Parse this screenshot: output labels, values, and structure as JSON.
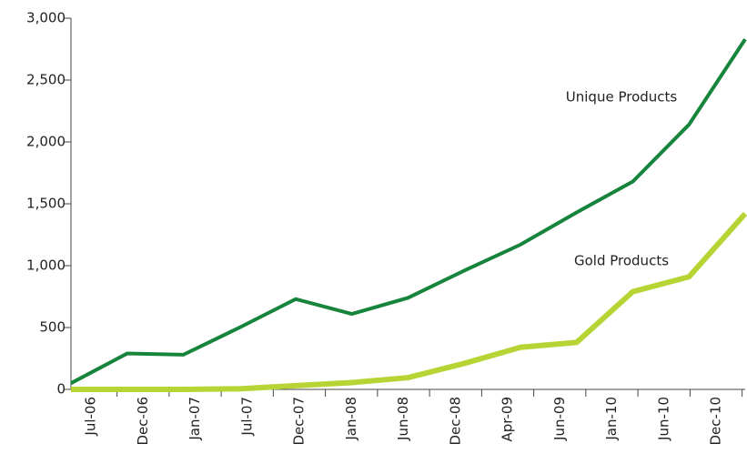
{
  "chart_data": {
    "type": "line",
    "categories": [
      "Jul-06",
      "Dec-06",
      "Jan-07",
      "Jul-07",
      "Dec-07",
      "Jan-08",
      "Jun-08",
      "Dec-08",
      "Apr-09",
      "Jun-09",
      "Jan-10",
      "Jun-10",
      "Dec-10"
    ],
    "series": [
      {
        "name": "Unique Products",
        "color": "#17843c",
        "values": [
          50,
          290,
          280,
          500,
          730,
          610,
          740,
          960,
          1170,
          1430,
          1680,
          2140,
          2830
        ]
      },
      {
        "name": "Gold Products",
        "color": "#b7d435",
        "values": [
          0,
          0,
          0,
          5,
          30,
          55,
          95,
          210,
          340,
          380,
          790,
          910,
          1420
        ]
      }
    ],
    "ylim": [
      0,
      3000
    ],
    "yticks": [
      0,
      {
        "value": 500,
        "label": "500"
      },
      {
        "value": 1000,
        "label": "1,000"
      },
      {
        "value": 1500,
        "label": "1,500"
      },
      {
        "value": 2000,
        "label": "2,000"
      },
      {
        "value": 2500,
        "label": "2,500"
      },
      {
        "value": 3000,
        "label": "3,000"
      }
    ]
  }
}
